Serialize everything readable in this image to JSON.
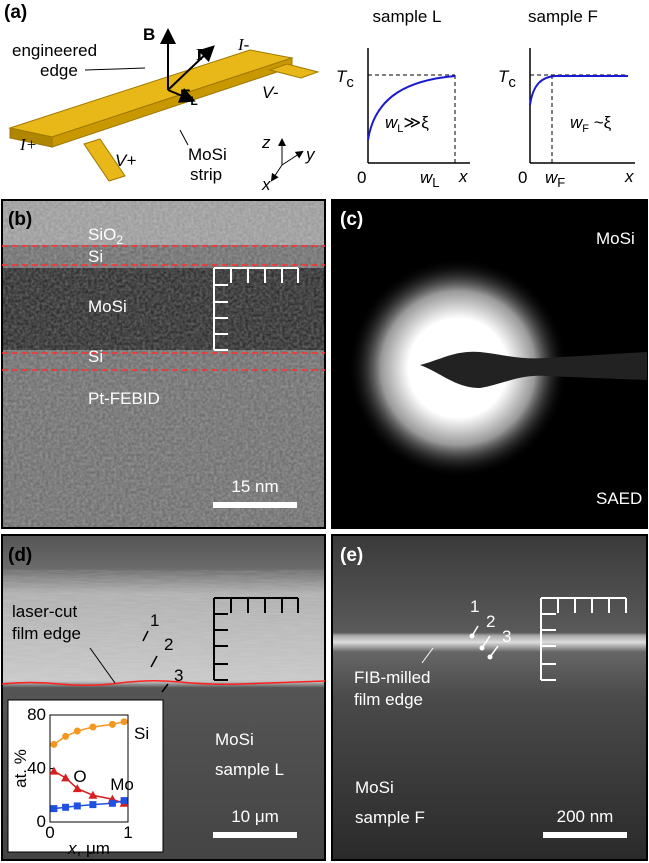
{
  "panel_a": {
    "label": "(a)",
    "field": "B",
    "current": "I",
    "force": {
      "base": "F",
      "sub": "L"
    },
    "edge": [
      "engineered",
      "edge"
    ],
    "contacts": {
      "i_plus": "I+",
      "i_minus": "I-",
      "v_plus": "V+",
      "v_minus": "V-"
    },
    "strip": [
      "MoSi",
      "strip"
    ],
    "axes": {
      "z": "z",
      "y": "y",
      "x": "x"
    },
    "plot_l": {
      "title": "sample L",
      "tc": {
        "base": "T",
        "sub": "c"
      },
      "origin": "0",
      "w": {
        "base": "w",
        "sub": "L"
      },
      "x": "x",
      "note": {
        "base": "w",
        "sub": "L",
        "rest": "≫ξ"
      }
    },
    "plot_f": {
      "title": "sample F",
      "tc": {
        "base": "T",
        "sub": "c"
      },
      "origin": "0",
      "w": {
        "base": "w",
        "sub": "F"
      },
      "x": "x",
      "note": {
        "base": "w",
        "sub": "F",
        "rest": " ~ξ"
      }
    }
  },
  "panel_b": {
    "label": "(b)",
    "sio2": {
      "base": "SiO",
      "sub": "2"
    },
    "si_top": "Si",
    "mosi": "MoSi",
    "si_bottom": "Si",
    "pt": "Pt-FEBID",
    "scale": "15 nm"
  },
  "panel_c": {
    "label": "(c)",
    "material": "MoSi",
    "method": "SAED"
  },
  "panel_d": {
    "label": "(d)",
    "edge": [
      "laser-cut",
      "film edge"
    ],
    "points": [
      "1",
      "2",
      "3"
    ],
    "material": "MoSi",
    "sample": "sample L",
    "scale": "10 μm",
    "inset": {
      "type": "line",
      "x": [
        0.05,
        0.2,
        0.35,
        0.55,
        0.8,
        0.95
      ],
      "xlim": [
        0,
        1
      ],
      "ylim": [
        0,
        80
      ],
      "xticks": [
        0,
        1
      ],
      "yticks": [
        0,
        40,
        80
      ],
      "ylabel": "at. %",
      "xlabel": {
        "var": "x",
        "unit": ", μm"
      },
      "series": [
        {
          "name": "Si",
          "color": "#f5961e",
          "marker": "circle",
          "values": [
            58,
            64,
            68,
            71,
            73,
            75
          ]
        },
        {
          "name": "O",
          "color": "#d81e1e",
          "marker": "triangle",
          "values": [
            38,
            33,
            25,
            20,
            17,
            14
          ]
        },
        {
          "name": "Mo",
          "color": "#2050e0",
          "marker": "square",
          "values": [
            10,
            11,
            12,
            13,
            14,
            16
          ]
        }
      ]
    }
  },
  "panel_e": {
    "label": "(e)",
    "points": [
      "1",
      "2",
      "3"
    ],
    "edge": [
      "FIB-milled",
      "film edge"
    ],
    "material": "MoSi",
    "sample": "sample F",
    "scale": "200 nm"
  }
}
